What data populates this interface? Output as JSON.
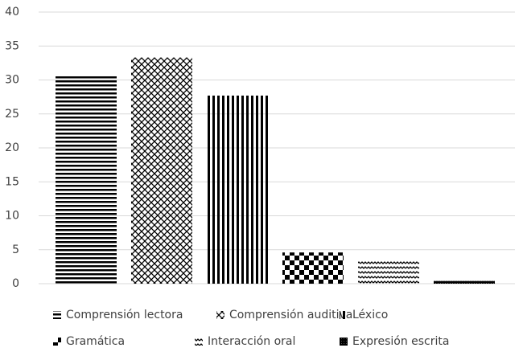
{
  "chart_data": {
    "type": "bar",
    "series": [
      {
        "name": "Comprensión lectora",
        "color": "#000000",
        "pattern": "horizontal",
        "values": [
          30.6
        ]
      },
      {
        "name": "Comprensión auditiva",
        "color": "#000000",
        "pattern": "crosshatch",
        "values": [
          33.3
        ]
      },
      {
        "name": "Léxico",
        "color": "#000000",
        "pattern": "vertical",
        "values": [
          27.7
        ]
      },
      {
        "name": "Gramática",
        "color": "#000000",
        "pattern": "checker",
        "values": [
          4.6
        ]
      },
      {
        "name": "Interacción oral",
        "color": "#000000",
        "pattern": "wave",
        "values": [
          3.5
        ]
      },
      {
        "name": "Expresión escrita",
        "color": "#000000",
        "pattern": "dense",
        "values": [
          0.4
        ]
      }
    ],
    "ylim": [
      0,
      40
    ],
    "yticks": [
      0,
      5,
      10,
      15,
      20,
      25,
      30,
      35,
      40
    ],
    "grid": true,
    "legend": "bottom"
  }
}
